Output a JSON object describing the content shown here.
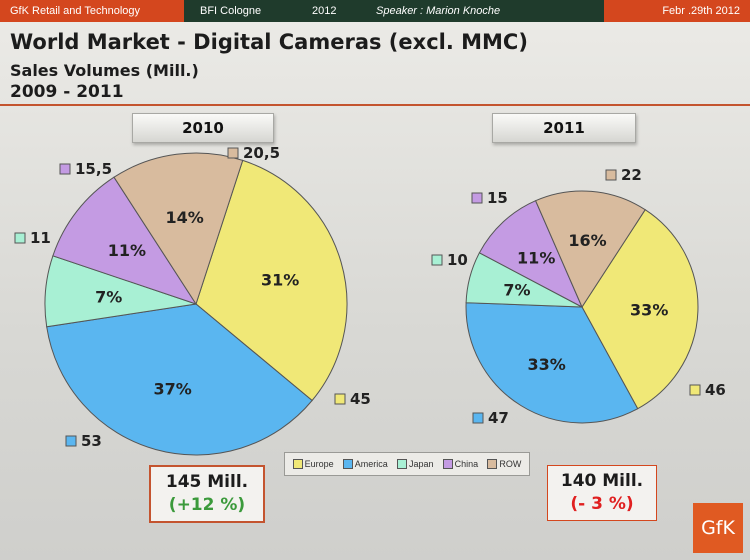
{
  "topbar": {
    "brand": "GfK Retail and Technology",
    "event": "BFI Cologne",
    "year": "2012",
    "speaker": "Speaker : Marion Knoche",
    "date": "Febr .29th 2012"
  },
  "logo": "GfK",
  "chart_data": {
    "type": "pie",
    "title": "World Market - Digital Cameras (excl. MMC)",
    "subtitle": "Sales Volumes (Mill.)",
    "period": "2009 - 2011",
    "legend": [
      "Europe",
      "America",
      "Japan",
      "China",
      "ROW"
    ],
    "colors": {
      "Europe": "#f0e877",
      "America": "#5ab6f0",
      "Japan": "#a8f0d4",
      "China": "#c49be3",
      "ROW": "#d8bb9e"
    },
    "legend_position": "bottom-center",
    "charts": [
      {
        "year": "2010",
        "total_label": "145 Mill.",
        "change_label": "(+12 %)",
        "slices": [
          {
            "region": "Europe",
            "value": 45,
            "value_label": "45",
            "pct_label": "31%"
          },
          {
            "region": "America",
            "value": 53,
            "value_label": "53",
            "pct_label": "37%"
          },
          {
            "region": "Japan",
            "value": 11,
            "value_label": "11",
            "pct_label": "7%"
          },
          {
            "region": "China",
            "value": 15.5,
            "value_label": "15,5",
            "pct_label": "11%"
          },
          {
            "region": "ROW",
            "value": 20.5,
            "value_label": "20,5",
            "pct_label": "14%"
          }
        ]
      },
      {
        "year": "2011",
        "total_label": "140 Mill.",
        "change_label": "(- 3 %)",
        "slices": [
          {
            "region": "Europe",
            "value": 46,
            "value_label": "46",
            "pct_label": "33%"
          },
          {
            "region": "America",
            "value": 47,
            "value_label": "47",
            "pct_label": "33%"
          },
          {
            "region": "Japan",
            "value": 10,
            "value_label": "10",
            "pct_label": "7%"
          },
          {
            "region": "China",
            "value": 15,
            "value_label": "15",
            "pct_label": "11%"
          },
          {
            "region": "ROW",
            "value": 22,
            "value_label": "22",
            "pct_label": "16%"
          }
        ]
      }
    ]
  }
}
